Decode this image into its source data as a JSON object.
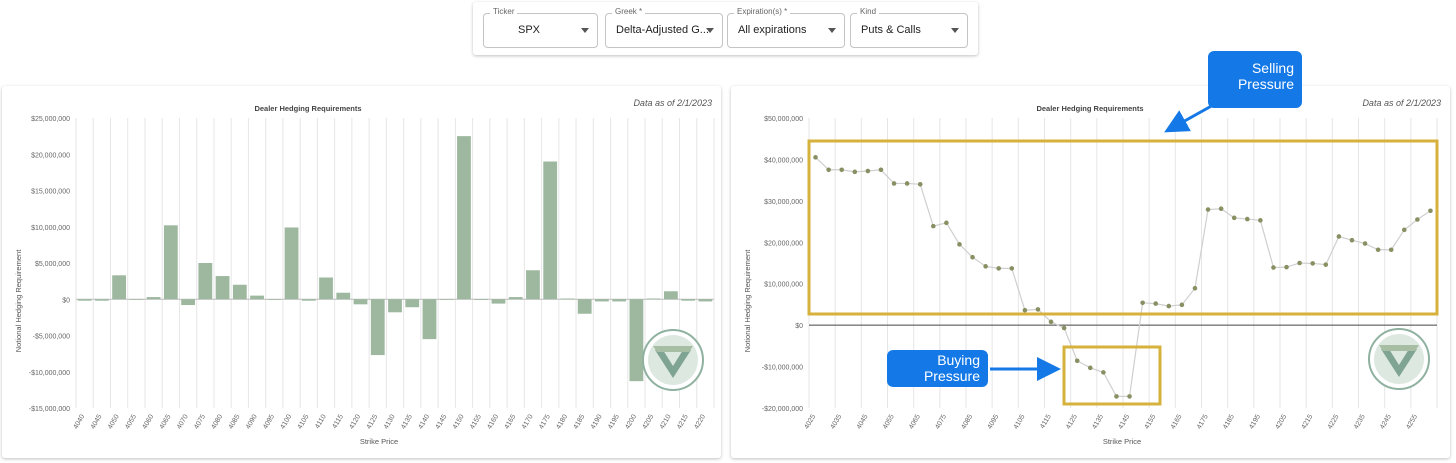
{
  "filters": {
    "ticker": {
      "label": "Ticker",
      "value": "SPX"
    },
    "greek": {
      "label": "Greek *",
      "value": "Delta-Adjusted G..."
    },
    "expiration": {
      "label": "Expiration(s) *",
      "value": "All expirations"
    },
    "kind": {
      "label": "Kind",
      "value": "Puts & Calls"
    }
  },
  "colors": {
    "bar": "#9db89f",
    "line": "#cfcfcf",
    "point": "#8a8f63",
    "box": "#d6b13c",
    "callout": "#1479e6",
    "zero_line": "#444444"
  },
  "annotations": {
    "selling": "Selling Pressure",
    "buying": "Buying Pressure"
  },
  "chart_data": [
    {
      "type": "bar",
      "title": "Dealer Hedging Requirements",
      "asof": "Data as of 2/1/2023",
      "xlabel": "Strike Price",
      "ylabel": "Notional Hedging Requirement",
      "ylim": [
        -15000000,
        25000000
      ],
      "yticks": [
        -15000000,
        -10000000,
        -5000000,
        0,
        5000000,
        10000000,
        15000000,
        20000000,
        25000000
      ],
      "ytick_labels": [
        "-$15,000,000",
        "-$10,000,000",
        "-$5,000,000",
        "$0",
        "$5,000,000",
        "$10,000,000",
        "$15,000,000",
        "$20,000,000",
        "$25,000,000"
      ],
      "grid": "vertical",
      "categories": [
        "4040",
        "4045",
        "4050",
        "4055",
        "4060",
        "4065",
        "4070",
        "4075",
        "4080",
        "4085",
        "4090",
        "4095",
        "4100",
        "4105",
        "4110",
        "4115",
        "4120",
        "4125",
        "4130",
        "4135",
        "4140",
        "4145",
        "4150",
        "4155",
        "4160",
        "4165",
        "4170",
        "4175",
        "4180",
        "4185",
        "4190",
        "4195",
        "4200",
        "4205",
        "4210",
        "4215",
        "4220"
      ],
      "values": [
        -200000,
        -200000,
        3300000,
        0,
        300000,
        10200000,
        -800000,
        5000000,
        3200000,
        2000000,
        500000,
        0,
        9900000,
        -200000,
        3000000,
        900000,
        -700000,
        -7700000,
        -1800000,
        -1100000,
        -5500000,
        0,
        22500000,
        -100000,
        -600000,
        300000,
        4000000,
        19000000,
        100000,
        -2000000,
        -300000,
        -300000,
        -11300000,
        100000,
        1100000,
        -200000,
        -300000
      ]
    },
    {
      "type": "line",
      "title": "Dealer Hedging Requirements",
      "asof": "Data as of 2/1/2023",
      "xlabel": "Strike Price",
      "ylabel": "Notional Hedging Requirement",
      "ylim": [
        -20000000,
        50000000
      ],
      "yticks": [
        -20000000,
        -10000000,
        0,
        10000000,
        20000000,
        30000000,
        40000000,
        50000000
      ],
      "ytick_labels": [
        "-$20,000,000",
        "-$10,000,000",
        "$0",
        "$10,000,000",
        "$20,000,000",
        "$30,000,000",
        "$40,000,000",
        "$50,000,000"
      ],
      "grid": "vertical",
      "x": [
        "4025",
        "4030",
        "4035",
        "4040",
        "4045",
        "4050",
        "4055",
        "4060",
        "4065",
        "4070",
        "4075",
        "4080",
        "4085",
        "4090",
        "4095",
        "4100",
        "4105",
        "4110",
        "4115",
        "4120",
        "4125",
        "4130",
        "4135",
        "4140",
        "4145",
        "4150",
        "4155",
        "4160",
        "4165",
        "4170",
        "4175",
        "4180",
        "4185",
        "4190",
        "4195",
        "4200",
        "4205",
        "4210",
        "4215",
        "4220",
        "4225",
        "4230",
        "4235",
        "4240",
        "4245",
        "4250",
        "4255",
        "4260"
      ],
      "x_labels": [
        "4025",
        "4035",
        "4045",
        "4055",
        "4065",
        "4075",
        "4085",
        "4095",
        "4105",
        "4115",
        "4125",
        "4135",
        "4145",
        "4155",
        "4165",
        "4175",
        "4185",
        "4195",
        "4205",
        "4215",
        "4225",
        "4235",
        "4245",
        "4255"
      ],
      "values": [
        40500000,
        37500000,
        37500000,
        37000000,
        37200000,
        37500000,
        34200000,
        34200000,
        34000000,
        23900000,
        24700000,
        19500000,
        16400000,
        14200000,
        13700000,
        13700000,
        3600000,
        3800000,
        800000,
        -700000,
        -8600000,
        -10300000,
        -11400000,
        -17200000,
        -17200000,
        5400000,
        5200000,
        4600000,
        4900000,
        8900000,
        27900000,
        28100000,
        25900000,
        25600000,
        25300000,
        13900000,
        14000000,
        15000000,
        14900000,
        14600000,
        21400000,
        20500000,
        19700000,
        18200000,
        18200000,
        23000000,
        25500000,
        27600000
      ]
    }
  ]
}
